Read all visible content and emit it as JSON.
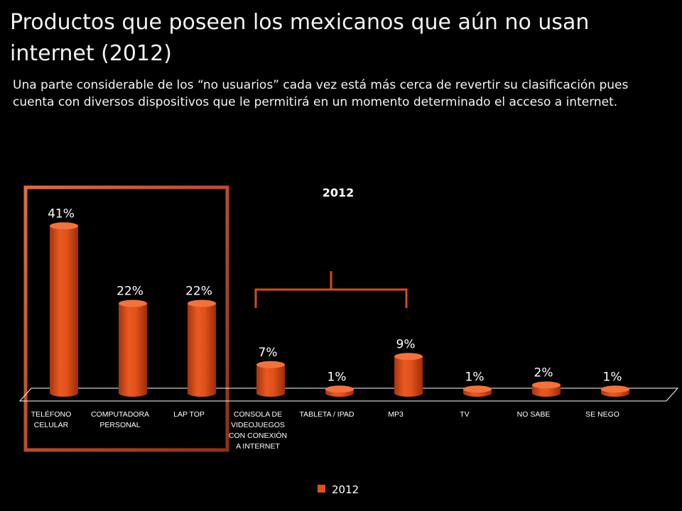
{
  "slide": {
    "title": "Productos que poseen los mexicanos que aún no usan internet (2012)",
    "subtitle": "Una parte considerable de los “no usuarios” cada vez está más cerca de revertir su clasificación pues cuenta con diversos dispositivos que le permitirá en un momento determinado el acceso a internet."
  },
  "colors": {
    "bar": "#e0511b",
    "bar_dark": "#a8330c",
    "bar_top": "#f0733e",
    "highlight_frame": "#c9502e",
    "bracket": "#d44a22"
  },
  "chart_data": {
    "type": "bar",
    "title": "2012",
    "categories": [
      "TELÉFONO CELULAR",
      "COMPUTADORA PERSONAL",
      "LAP TOP",
      "CONSOLA DE VIDEOJUEGOS CON CONEXIÓN A INTERNET",
      "TABLETA / IPAD",
      "MP3",
      "TV",
      "NO SABE",
      "SE NEGO"
    ],
    "category_lines": [
      [
        "TELÉFONO",
        "CELULAR"
      ],
      [
        "COMPUTADORA",
        "PERSONAL"
      ],
      [
        "LAP TOP"
      ],
      [
        "CONSOLA DE",
        "VIDEOJUEGOS",
        "CON CONEXIÓN",
        "A INTERNET"
      ],
      [
        "TABLETA / IPAD"
      ],
      [
        "MP3"
      ],
      [
        "TV"
      ],
      [
        "NO SABE"
      ],
      [
        "SE NEGO"
      ]
    ],
    "series": [
      {
        "name": "2012",
        "values": [
          41,
          22,
          22,
          7,
          1,
          9,
          1,
          2,
          1
        ],
        "labels": [
          "41%",
          "22%",
          "22%",
          "7%",
          "1%",
          "9%",
          "1%",
          "2%",
          "1%"
        ]
      }
    ],
    "legend": {
      "position": "bottom",
      "entries": [
        "2012"
      ]
    },
    "grid": false
  }
}
